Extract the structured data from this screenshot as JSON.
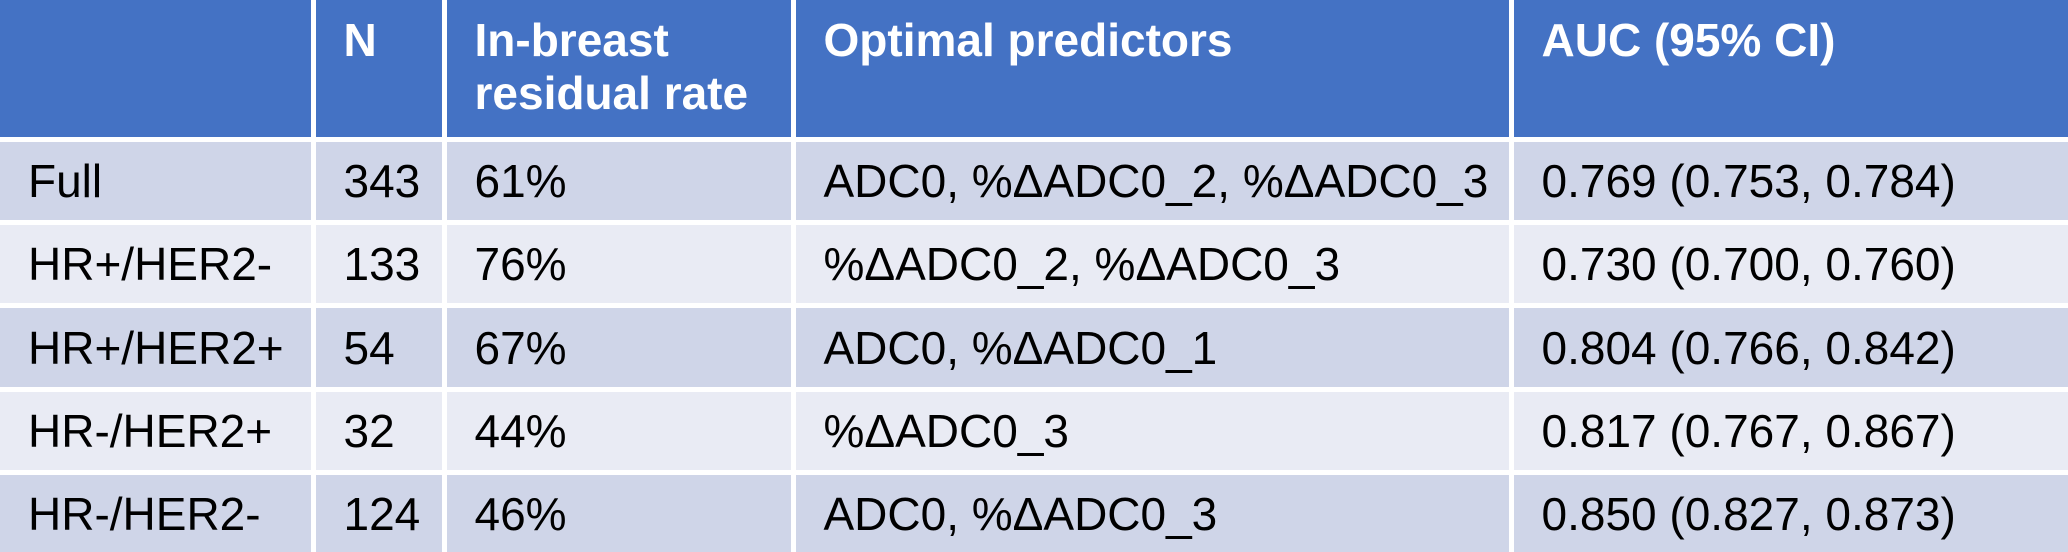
{
  "table": {
    "title_semantic": "Model performance by breast cancer subtype",
    "colors": {
      "header_bg": "#4472c4",
      "header_text": "#ffffff",
      "band_dark": "#cfd5e8",
      "band_light": "#e9ebf4",
      "separator": "#ffffff",
      "body_text": "#000000"
    },
    "columns": [
      {
        "key": "group",
        "label": ""
      },
      {
        "key": "n",
        "label": "N"
      },
      {
        "key": "residual_rate",
        "label": "In-breast residual rate"
      },
      {
        "key": "predictors",
        "label": "Optimal predictors"
      },
      {
        "key": "auc",
        "label": "AUC (95% CI)"
      }
    ],
    "rows": [
      {
        "group": "Full",
        "n": "343",
        "residual_rate": "61%",
        "predictors": "ADC0, %ΔADC0_2, %ΔADC0_3",
        "auc": "0.769 (0.753, 0.784)"
      },
      {
        "group": "HR+/HER2-",
        "n": "133",
        "residual_rate": "76%",
        "predictors": "%ΔADC0_2, %ΔADC0_3",
        "auc": "0.730 (0.700, 0.760)"
      },
      {
        "group": "HR+/HER2+",
        "n": "54",
        "residual_rate": "67%",
        "predictors": "ADC0, %ΔADC0_1",
        "auc": "0.804 (0.766, 0.842)"
      },
      {
        "group": "HR-/HER2+",
        "n": "32",
        "residual_rate": "44%",
        "predictors": "%ΔADC0_3",
        "auc": "0.817 (0.767, 0.867)"
      },
      {
        "group": "HR-/HER2-",
        "n": "124",
        "residual_rate": "46%",
        "predictors": "ADC0, %ΔADC0_3",
        "auc": "0.850 (0.827, 0.873)"
      }
    ]
  }
}
